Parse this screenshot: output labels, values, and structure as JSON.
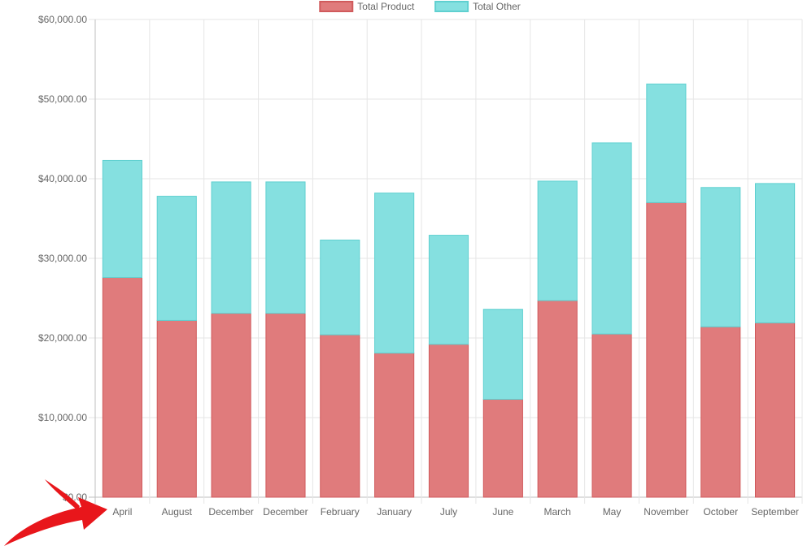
{
  "chart_data": {
    "type": "bar",
    "stacked": true,
    "categories": [
      "April",
      "August",
      "December",
      "December",
      "February",
      "January",
      "July",
      "June",
      "March",
      "May",
      "November",
      "October",
      "September"
    ],
    "series": [
      {
        "name": "Total Product",
        "color": "#e07b7c",
        "border_color": "#d05a5c",
        "values": [
          27600,
          22200,
          23100,
          23100,
          20400,
          18100,
          19200,
          12300,
          24700,
          20500,
          37000,
          21400,
          21900
        ]
      },
      {
        "name": "Total Other",
        "color": "#85e0e0",
        "border_color": "#5fd0d0",
        "values": [
          14700,
          15600,
          16500,
          16500,
          11900,
          20100,
          13700,
          11300,
          15000,
          24000,
          14900,
          17500,
          17500
        ]
      }
    ],
    "y_ticks": [
      "$0.00",
      "$10,000.00",
      "$20,000.00",
      "$30,000.00",
      "$40,000.00",
      "$50,000.00",
      "$60,000.00"
    ],
    "ylim": [
      0,
      60000
    ],
    "grid": true,
    "legend_position": "top"
  },
  "annotation": {
    "arrow_color": "#e8161b",
    "icon": "red-arrow-icon"
  }
}
